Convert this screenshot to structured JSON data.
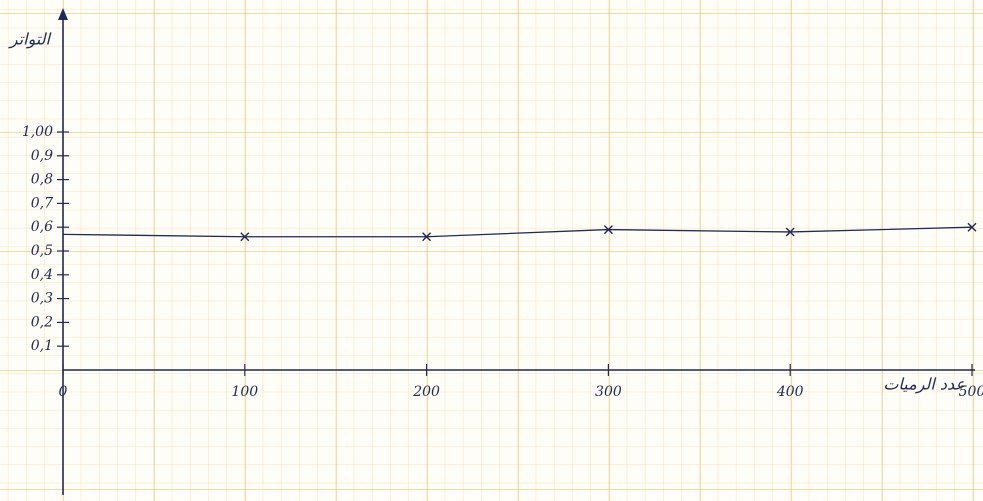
{
  "chart_data": {
    "type": "line",
    "y_label": "التواتر",
    "x_label": "عدد الرميات",
    "x": [
      0,
      100,
      200,
      300,
      400,
      500
    ],
    "series": [
      {
        "color": "#1d2a5a",
        "values": [
          0.57,
          0.56,
          0.56,
          0.59,
          0.58,
          0.6
        ]
      }
    ],
    "xlim": [
      0,
      500
    ],
    "xticks": [
      0,
      100,
      200,
      300,
      400,
      500
    ],
    "ylim": [
      0,
      1
    ],
    "yticks": [
      {
        "value": 0.1,
        "label": "0,1"
      },
      {
        "value": 0.2,
        "label": "0,2"
      },
      {
        "value": 0.3,
        "label": "0,3"
      },
      {
        "value": 0.4,
        "label": "0,4"
      },
      {
        "value": 0.5,
        "label": "0,5"
      },
      {
        "value": 0.6,
        "label": "0,6"
      },
      {
        "value": 0.7,
        "label": "0,7"
      },
      {
        "value": 0.8,
        "label": "0,8"
      },
      {
        "value": 0.9,
        "label": "0,9"
      },
      {
        "value": 1,
        "label": "1,00"
      }
    ]
  }
}
